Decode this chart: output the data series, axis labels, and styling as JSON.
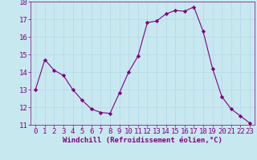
{
  "x": [
    0,
    1,
    2,
    3,
    4,
    5,
    6,
    7,
    8,
    9,
    10,
    11,
    12,
    13,
    14,
    15,
    16,
    17,
    18,
    19,
    20,
    21,
    22,
    23
  ],
  "y": [
    13.0,
    14.7,
    14.1,
    13.8,
    13.0,
    12.4,
    11.9,
    11.7,
    11.65,
    12.8,
    14.0,
    14.9,
    16.8,
    16.9,
    17.3,
    17.5,
    17.45,
    17.7,
    16.3,
    14.2,
    12.6,
    11.9,
    11.5,
    11.1
  ],
  "line_color": "#800080",
  "marker": "D",
  "marker_size": 2.2,
  "bg_color": "#c8e8f0",
  "grid_color": "#b0d8e8",
  "xlabel": "Windchill (Refroidissement éolien,°C)",
  "ylim": [
    11,
    18
  ],
  "xlim_min": -0.5,
  "xlim_max": 23.5,
  "yticks": [
    11,
    12,
    13,
    14,
    15,
    16,
    17,
    18
  ],
  "xticks": [
    0,
    1,
    2,
    3,
    4,
    5,
    6,
    7,
    8,
    9,
    10,
    11,
    12,
    13,
    14,
    15,
    16,
    17,
    18,
    19,
    20,
    21,
    22,
    23
  ],
  "xlabel_fontsize": 6.5,
  "tick_fontsize": 6.5,
  "line_color_hex": "#800080",
  "spine_color": "#800080",
  "label_color": "#800080"
}
